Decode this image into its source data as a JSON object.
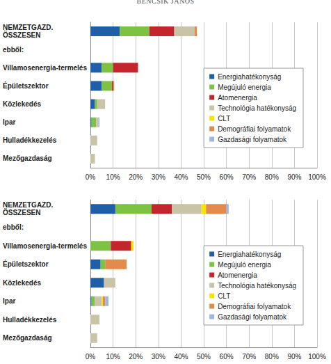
{
  "header": "BENCSIK JÁNOS",
  "chart_data": [
    {
      "type": "bar",
      "orientation": "horizontal",
      "stacked": true,
      "grid": true,
      "legend": "right",
      "categories": [
        "NEMZETGAZD.\nÖSSZESEN",
        "ebből:",
        "Villamosenergia-termelés",
        "Épületszektor",
        "Közlekedés",
        "Ipar",
        "Hulladékkezelés",
        "Mezőgazdaság"
      ],
      "series": [
        {
          "name": "Energiahatékonyság",
          "color": "#1f5fa8",
          "values": [
            13,
            null,
            5,
            5,
            2,
            0.5,
            0,
            0
          ]
        },
        {
          "name": "Megújuló energia",
          "color": "#7dc243",
          "values": [
            13,
            null,
            5,
            4.5,
            1,
            2,
            0,
            0
          ]
        },
        {
          "name": "Atomenergia",
          "color": "#c4262e",
          "values": [
            11,
            null,
            11,
            0.5,
            0,
            0,
            0,
            0
          ]
        },
        {
          "name": "Technológia hatékonyság",
          "color": "#c9c3a8",
          "values": [
            9,
            null,
            0,
            0,
            3.5,
            1,
            3,
            2
          ]
        },
        {
          "name": "CLT",
          "color": "#f4e400",
          "values": [
            0,
            null,
            0,
            0,
            0,
            0,
            0,
            0
          ]
        },
        {
          "name": "Demográfiai folyamatok",
          "color": "#e38b4c",
          "values": [
            1,
            null,
            0,
            0.5,
            0,
            0,
            0,
            0
          ]
        },
        {
          "name": "Gazdasági folyamatok",
          "color": "#9cb8dd",
          "values": [
            0,
            null,
            0,
            0,
            0,
            0.5,
            0,
            0
          ]
        }
      ],
      "xlim": [
        0,
        100
      ],
      "xticks": [
        {
          "value": 0,
          "label": "0%"
        },
        {
          "value": 10,
          "label": "10%"
        },
        {
          "value": 20,
          "label": "20%"
        },
        {
          "value": 30,
          "label": "30%"
        },
        {
          "value": 40,
          "label": "40%"
        },
        {
          "value": 50,
          "label": "50%"
        },
        {
          "value": 60,
          "label": "60%"
        },
        {
          "value": 70,
          "label": "70%"
        },
        {
          "value": 80,
          "label": "80%"
        },
        {
          "value": 90,
          "label": "90%"
        },
        {
          "value": 100,
          "label": "100%"
        }
      ]
    },
    {
      "type": "bar",
      "orientation": "horizontal",
      "stacked": true,
      "grid": true,
      "legend": "right",
      "categories": [
        "NEMZETGAZD.\nÖSSZESEN",
        "ebből:",
        "Villamosenergia-termelés",
        "Épületszektor",
        "Közlekedés",
        "Ipar",
        "Hulladékkezelés",
        "Mezőgazdaság"
      ],
      "series": [
        {
          "name": "Energiahatékonyság",
          "color": "#1f5fa8",
          "values": [
            11,
            null,
            0,
            4.5,
            6,
            0.5,
            0,
            0
          ]
        },
        {
          "name": "Megújuló energia",
          "color": "#7dc243",
          "values": [
            16,
            null,
            9,
            2,
            0,
            1.5,
            0,
            0
          ]
        },
        {
          "name": "Atomenergia",
          "color": "#c4262e",
          "values": [
            9,
            null,
            9,
            0,
            0,
            0,
            0,
            0
          ]
        },
        {
          "name": "Technológia hatékonyság",
          "color": "#c9c3a8",
          "values": [
            13,
            null,
            0,
            0,
            5,
            3,
            4,
            3
          ]
        },
        {
          "name": "CLT",
          "color": "#f4e400",
          "values": [
            2,
            null,
            1,
            0,
            0,
            0.5,
            0,
            0
          ]
        },
        {
          "name": "Demográfiai folyamatok",
          "color": "#e38b4c",
          "values": [
            9,
            null,
            0,
            9.5,
            0,
            1,
            0,
            0
          ]
        },
        {
          "name": "Gazdasági folyamatok",
          "color": "#9cb8dd",
          "values": [
            1,
            null,
            0,
            0,
            0,
            1.5,
            0,
            0
          ]
        }
      ],
      "xlim": [
        0,
        100
      ],
      "xticks": [
        {
          "value": 0,
          "label": "0%"
        },
        {
          "value": 10,
          "label": "10%"
        },
        {
          "value": 20,
          "label": "20%"
        },
        {
          "value": 30,
          "label": "30%"
        },
        {
          "value": 40,
          "label": "40%"
        },
        {
          "value": 50,
          "label": "50%"
        },
        {
          "value": 60,
          "label": "60%"
        },
        {
          "value": 70,
          "label": "70%"
        },
        {
          "value": 80,
          "label": "80%"
        },
        {
          "value": 90,
          "label": "90%"
        },
        {
          "value": 100,
          "label": "100%"
        }
      ]
    }
  ]
}
